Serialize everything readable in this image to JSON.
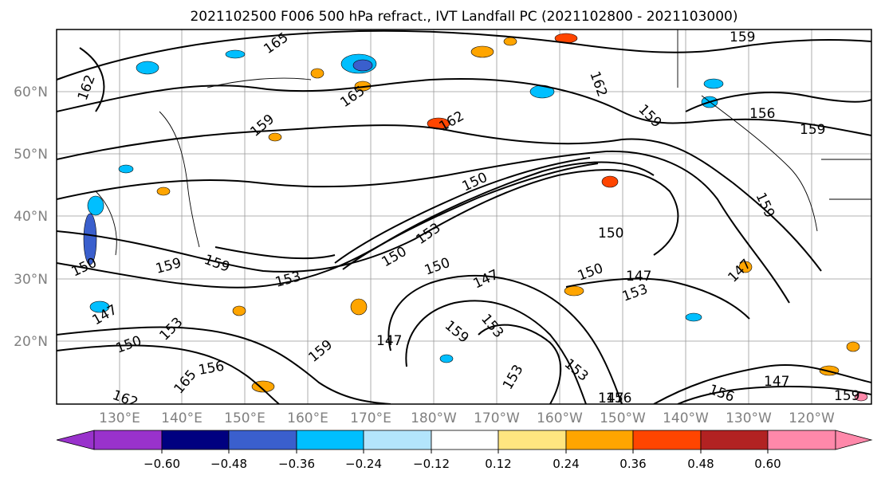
{
  "title": "2021102500 F006 500 hPa refract., IVT Landfall PC (2021102800 - 2021103000)",
  "map": {
    "lat_labels": [
      "60°N",
      "50°N",
      "40°N",
      "30°N",
      "20°N"
    ],
    "lon_labels": [
      "130°E",
      "140°E",
      "150°E",
      "160°E",
      "170°E",
      "180°W",
      "170°W",
      "160°W",
      "150°W",
      "140°W",
      "130°W",
      "120°W"
    ],
    "contour_labels": [
      "165",
      "159",
      "162",
      "165",
      "159",
      "162",
      "162",
      "159",
      "156",
      "159",
      "159",
      "150",
      "150",
      "150",
      "150",
      "150",
      "153",
      "159",
      "159",
      "153",
      "147",
      "150",
      "153",
      "147",
      "147",
      "153",
      "159",
      "147",
      "153",
      "153",
      "147",
      "147",
      "150",
      "165",
      "156",
      "159",
      "153",
      "162",
      "159",
      "156",
      "147",
      "156"
    ]
  },
  "colorbar": {
    "tick_labels": [
      "−0.60",
      "−0.48",
      "−0.36",
      "−0.24",
      "−0.12",
      "0.12",
      "0.24",
      "0.36",
      "0.48",
      "0.60"
    ],
    "colors": [
      "#9932cc",
      "#000080",
      "#3a5fcd",
      "#00bfff",
      "#b3e5fc",
      "#ffffff",
      "#ffe680",
      "#ffa500",
      "#ff4500",
      "#b22222",
      "#ff88aa"
    ]
  }
}
